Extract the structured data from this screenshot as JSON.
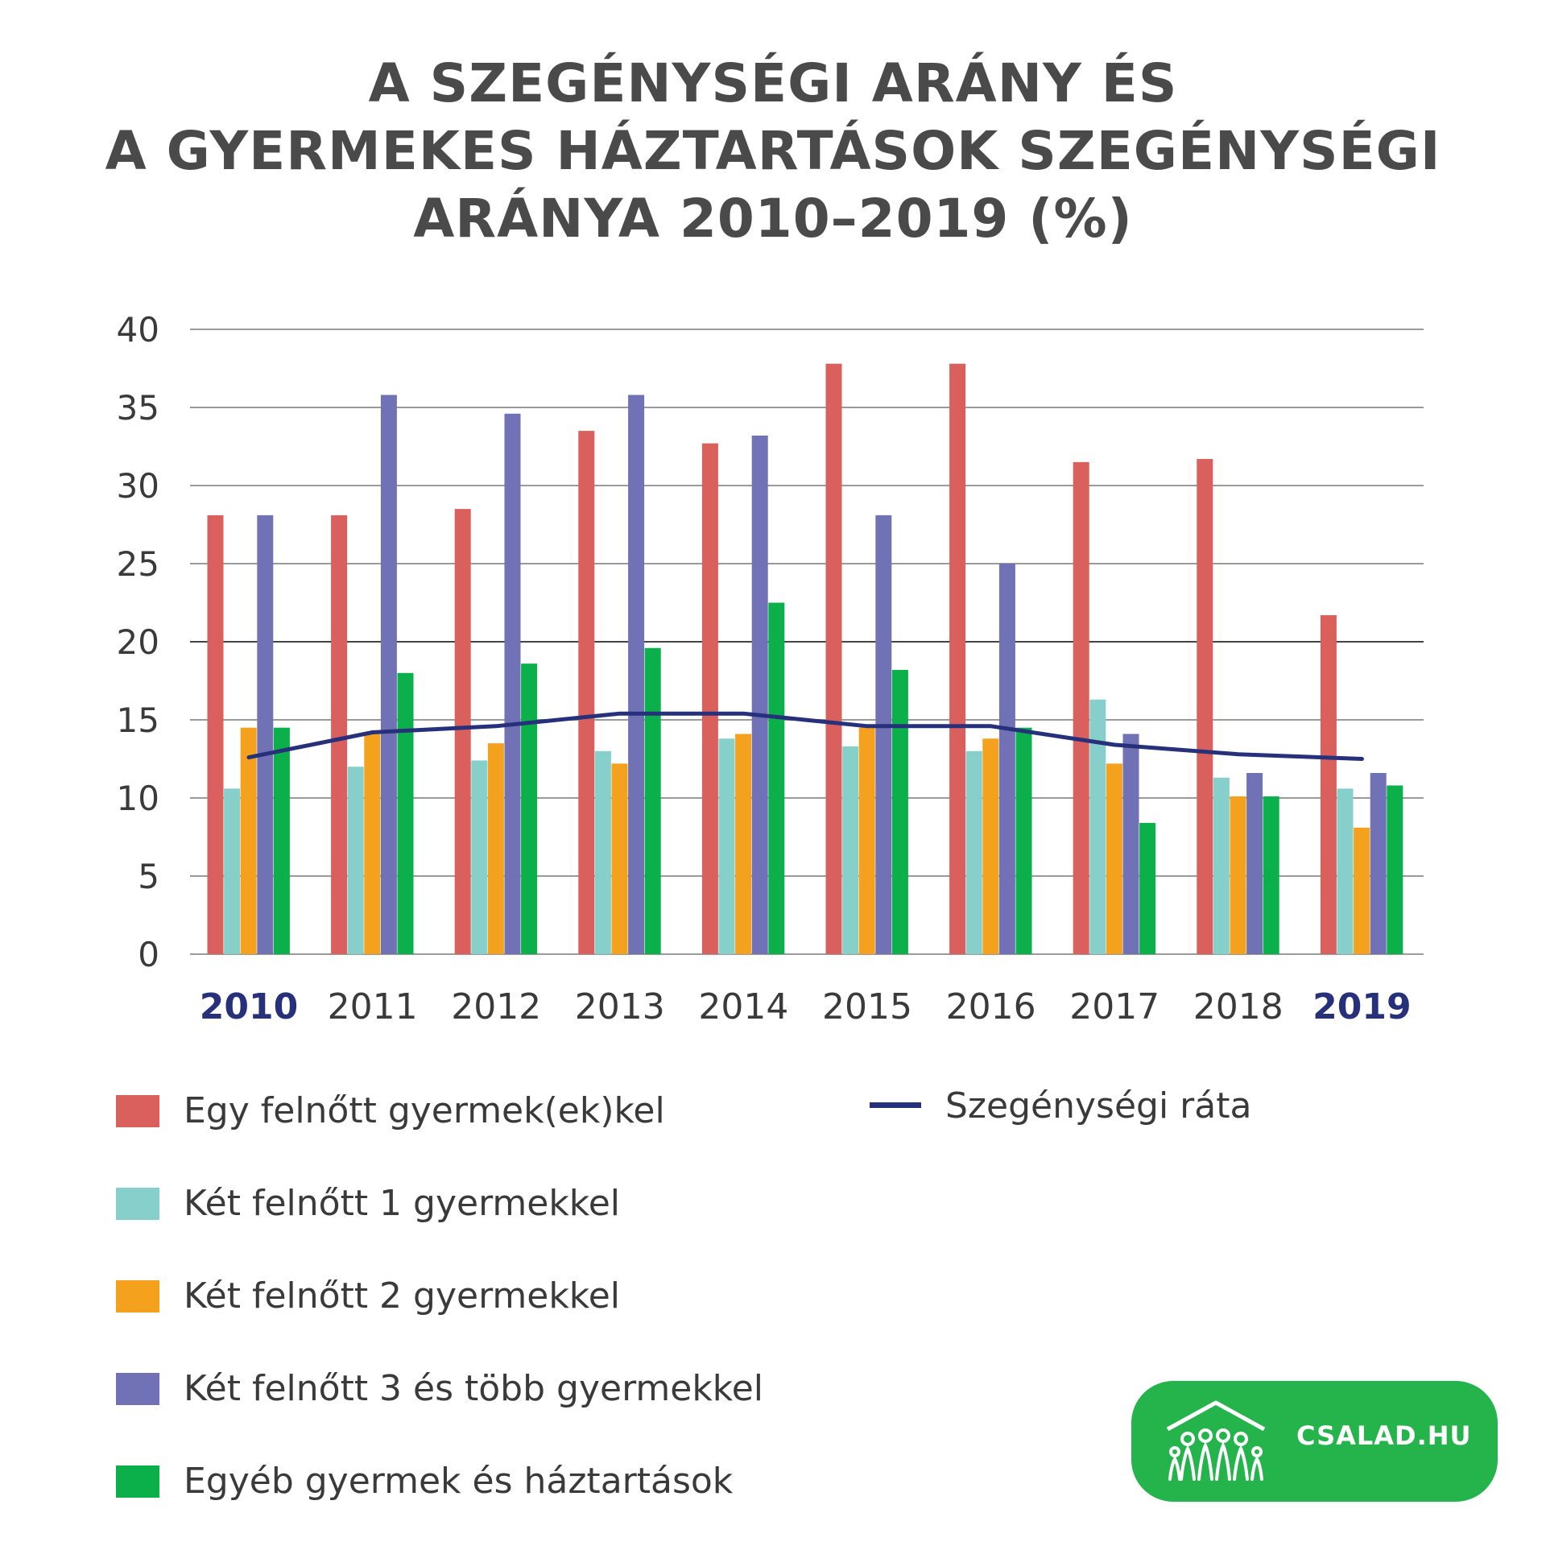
{
  "title_lines": [
    "A SZEGÉNYSÉGI ARÁNY ÉS",
    "A GYERMEKES HÁZTARTÁSOK SZEGÉNYSÉGI",
    "ARÁNYA 2010–2019 (%)"
  ],
  "chart_data": {
    "type": "bar",
    "categories": [
      "2010",
      "2011",
      "2012",
      "2013",
      "2014",
      "2015",
      "2016",
      "2017",
      "2018",
      "2019"
    ],
    "highlighted_categories": [
      "2010",
      "2019"
    ],
    "ylim": [
      0,
      40
    ],
    "yticks": [
      0,
      5,
      10,
      15,
      20,
      25,
      30,
      35,
      40
    ],
    "grid": true,
    "legend_position": "bottom",
    "series": [
      {
        "name": "Egy felnőtt gyermek(ek)kel",
        "type": "bar",
        "color": "#d9605c",
        "values": [
          28.1,
          28.1,
          28.5,
          33.5,
          32.7,
          37.8,
          37.8,
          31.5,
          31.7,
          21.7
        ]
      },
      {
        "name": "Két felnőtt 1 gyermekkel",
        "type": "bar",
        "color": "#86cfcb",
        "values": [
          10.6,
          12.0,
          12.4,
          13.0,
          13.8,
          13.3,
          13.0,
          16.3,
          11.3,
          10.6
        ]
      },
      {
        "name": "Két felnőtt 2 gyermekkel",
        "type": "bar",
        "color": "#f4a11e",
        "values": [
          14.5,
          14.1,
          13.5,
          12.2,
          14.1,
          14.5,
          13.8,
          12.2,
          10.1,
          8.1
        ]
      },
      {
        "name": "Két felnőtt 3 és több gyermekkel",
        "type": "bar",
        "color": "#7072b5",
        "values": [
          28.1,
          35.8,
          34.6,
          35.8,
          33.2,
          28.1,
          25.0,
          14.1,
          11.6,
          11.6
        ]
      },
      {
        "name": "Egyéb gyermek és háztartások",
        "type": "bar",
        "color": "#0bb04b",
        "values": [
          14.5,
          18.0,
          18.6,
          19.6,
          22.5,
          18.2,
          14.5,
          8.4,
          10.1,
          10.8
        ]
      },
      {
        "name": "Szegénységi ráta",
        "type": "line",
        "color": "#27307a",
        "values": [
          12.6,
          14.2,
          14.6,
          15.4,
          15.4,
          14.6,
          14.6,
          13.4,
          12.8,
          12.5
        ]
      }
    ]
  },
  "logo": {
    "text": "CSALAD.HU",
    "color": "#25b34b",
    "icon": "family-house-icon"
  }
}
